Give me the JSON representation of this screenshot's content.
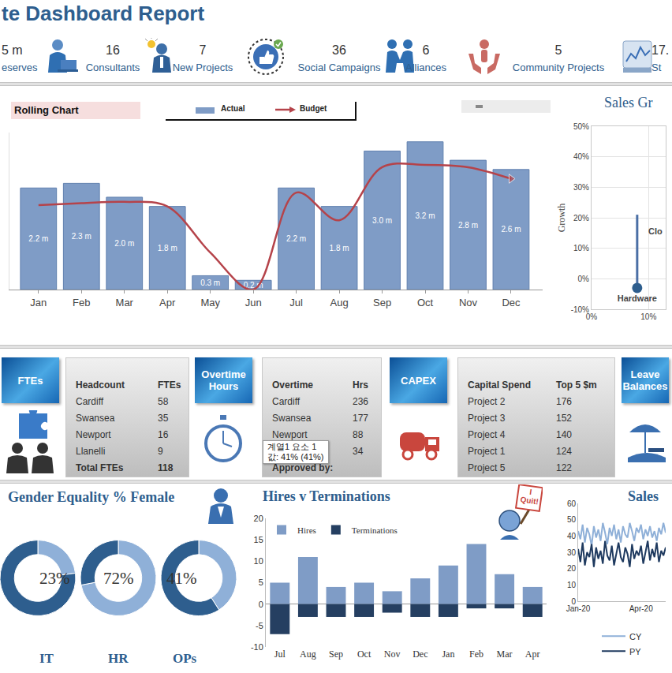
{
  "header": {
    "title": "te Dashboard Report"
  },
  "kpis": [
    {
      "value": "5 m",
      "label": "eserves"
    },
    {
      "value": 16,
      "label": "Consultants"
    },
    {
      "value": 7,
      "label": "New Projects"
    },
    {
      "value": 36,
      "label": "Social Campaigns"
    },
    {
      "value": 6,
      "label": "Alliances"
    },
    {
      "value": 5,
      "label": "Community Projects"
    },
    {
      "value": "17.",
      "label": "St"
    }
  ],
  "tables": [
    {
      "tile": "FTEs",
      "columns": [
        "Headcount",
        "FTEs"
      ],
      "rows": [
        [
          "Cardiff",
          58
        ],
        [
          "Swansea",
          35
        ],
        [
          "Newport",
          16
        ],
        [
          "Llanelli",
          9
        ],
        [
          "Total FTEs",
          118
        ]
      ]
    },
    {
      "tile": "Overtime Hours",
      "columns": [
        "Overtime",
        "Hrs"
      ],
      "rows": [
        [
          "Cardiff",
          236
        ],
        [
          "Swansea",
          177
        ],
        [
          "Newport",
          88
        ],
        [
          null,
          34
        ]
      ],
      "footer": "Approved by:"
    },
    {
      "tile": "CAPEX",
      "columns": [
        "Capital Spend",
        "Top 5 $m"
      ],
      "rows": [
        [
          "Project 2",
          176
        ],
        [
          "Project 3",
          152
        ],
        [
          "Project 4",
          140
        ],
        [
          "Project 1",
          124
        ],
        [
          "Project 5",
          122
        ]
      ]
    },
    {
      "tile": "Leave Balances"
    }
  ],
  "tooltip": [
    "계열1 요소 1",
    "값: 41% (41%)"
  ],
  "chart_data": [
    {
      "type": "bar",
      "title": "Rolling Chart",
      "categories": [
        "Jan",
        "Feb",
        "Mar",
        "Apr",
        "May",
        "Jun",
        "Jul",
        "Aug",
        "Sep",
        "Oct",
        "Nov",
        "Dec"
      ],
      "series": [
        {
          "name": "Actual",
          "type": "bar",
          "color": "#7f9cc6",
          "values": [
            2.2,
            2.3,
            2.0,
            1.8,
            0.3,
            0.2,
            2.2,
            1.8,
            3.0,
            3.2,
            2.8,
            2.6
          ],
          "value_labels": [
            "2.2 m",
            "2.3 m",
            "2.0 m",
            "1.8 m",
            "0.3 m",
            "0.2 m",
            "2.2 m",
            "1.8 m",
            "3.0 m",
            "3.2 m",
            "2.8 m",
            "2.6 m"
          ]
        },
        {
          "name": "Budget",
          "type": "line",
          "color": "#b5434a",
          "values": [
            1.83,
            1.87,
            1.9,
            1.8,
            0.8,
            0.0,
            2.1,
            1.5,
            2.65,
            2.7,
            2.65,
            2.4
          ]
        }
      ],
      "ylim": [
        0,
        3.4
      ],
      "yticks": [],
      "tick_labels": "x",
      "data_labels": true,
      "grid": false,
      "legend": "top"
    },
    {
      "type": "scatter",
      "title": "Sales Gr",
      "ylabel": "Growth",
      "x": [
        8
      ],
      "values": [
        -3
      ],
      "labels": [
        "Hardware"
      ],
      "error_plus": [
        24
      ],
      "color": "#2e5e8e",
      "xlim": [
        0,
        13
      ],
      "xticks": [
        {
          "value": 0,
          "label": "0%"
        },
        {
          "value": 10,
          "label": "10%"
        }
      ],
      "ylim": [
        -10,
        50
      ],
      "yticks": [
        {
          "value": -10,
          "label": "-10%"
        },
        {
          "value": 0,
          "label": "0%"
        },
        {
          "value": 10,
          "label": "10%"
        },
        {
          "value": 20,
          "label": "20%"
        },
        {
          "value": 30,
          "label": "30%"
        },
        {
          "value": 40,
          "label": "40%"
        },
        {
          "value": 50,
          "label": "50%"
        }
      ],
      "grid": true,
      "annotations": [
        {
          "text": "Clo",
          "x": 11.2,
          "y": 15.5
        }
      ]
    },
    {
      "type": "pie",
      "title": "Gender Equality % Female",
      "categories": [
        "IT",
        "HR",
        "OPs"
      ],
      "values": [
        23,
        72,
        41
      ],
      "value_labels": [
        "23%",
        "72%",
        "41%"
      ],
      "color": "#8fb0d8"
    },
    {
      "type": "bar",
      "title": "Hires v Terminations",
      "categories": [
        "Jul",
        "Aug",
        "Sep",
        "Oct",
        "Nov",
        "Dec",
        "Jan",
        "Feb",
        "Mar",
        "Apr"
      ],
      "series": [
        {
          "name": "Hires",
          "color": "#7f9cc6",
          "values": [
            5,
            11,
            4,
            5,
            3,
            6,
            9,
            14,
            7,
            4
          ]
        },
        {
          "name": "Terminations",
          "color": "#253f61",
          "values": [
            -7,
            -3,
            -3,
            -3,
            -2,
            -3,
            -3,
            -1,
            -1,
            -3
          ]
        }
      ],
      "stacked": true,
      "ylim": [
        -10,
        20
      ],
      "yticks": [
        -10,
        -5,
        0,
        5,
        10,
        15,
        20
      ],
      "grid": false,
      "legend": "top left",
      "annotations": [
        {
          "text": "I Quit!"
        }
      ]
    },
    {
      "type": "line",
      "title": "Sales",
      "categories": [
        "Jan-20",
        null,
        null,
        null,
        null,
        null,
        null,
        null,
        null,
        null,
        null,
        null,
        null,
        null,
        null,
        null,
        null,
        null,
        null,
        null,
        null,
        null,
        null,
        null,
        null,
        null,
        null,
        null,
        "Apr-20",
        null,
        null,
        null,
        null,
        null,
        null,
        null,
        null,
        null,
        null,
        null
      ],
      "series": [
        {
          "name": "CY",
          "color": "#8fb0d8",
          "values": [
            43,
            38,
            47,
            36,
            45,
            41,
            34,
            46,
            39,
            44,
            37,
            48,
            42,
            35,
            45,
            40,
            47,
            38,
            44,
            36,
            46,
            41,
            39,
            48,
            43,
            37,
            45,
            42,
            47,
            38,
            44,
            40,
            46,
            39,
            43,
            37,
            45,
            41,
            48,
            42
          ]
        },
        {
          "name": "PY",
          "color": "#1f3a5f",
          "values": [
            32,
            24,
            36,
            22,
            30,
            27,
            35,
            21,
            33,
            26,
            31,
            23,
            37,
            28,
            25,
            34,
            22,
            30,
            36,
            27,
            24,
            33,
            29,
            21,
            35,
            26,
            31,
            28,
            34,
            23,
            30,
            37,
            25,
            32,
            27,
            36,
            24,
            31,
            28,
            33
          ]
        }
      ],
      "ylim": [
        0,
        60
      ],
      "yticks": [
        0,
        10,
        20,
        30,
        40,
        50,
        60
      ],
      "grid": false,
      "legend": "bottom"
    }
  ]
}
